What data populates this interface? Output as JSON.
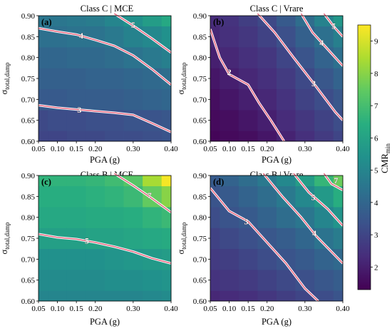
{
  "chart_data": [
    {
      "type": "heatmap",
      "panel_label": "(a)",
      "title": "Class C | MCE",
      "xlabel": "PGA (g)",
      "ylabel": "σ_total,damp",
      "x": [
        0.05,
        0.1,
        0.15,
        0.2,
        0.25,
        0.3,
        0.35,
        0.4
      ],
      "y": [
        0.6,
        0.65,
        0.7,
        0.75,
        0.8,
        0.85,
        0.9
      ],
      "values": [
        [
          3.0,
          3.0,
          3.1,
          3.1,
          3.2,
          3.2,
          3.3,
          3.4
        ],
        [
          3.1,
          3.2,
          3.2,
          3.3,
          3.3,
          3.4,
          3.4,
          3.5
        ],
        [
          3.6,
          3.6,
          3.7,
          3.7,
          3.7,
          3.8,
          3.9,
          4.0
        ],
        [
          3.8,
          3.8,
          3.8,
          3.9,
          3.9,
          4.0,
          4.1,
          4.2
        ],
        [
          4.0,
          4.0,
          4.1,
          4.1,
          4.2,
          4.4,
          4.6,
          4.8
        ],
        [
          4.3,
          4.3,
          4.4,
          4.4,
          4.6,
          4.9,
          5.1,
          5.4
        ],
        [
          4.5,
          4.5,
          4.6,
          4.7,
          5.0,
          5.4,
          5.8,
          6.2
        ]
      ],
      "contours": [
        {
          "level": "3",
          "points": [
            [
              0.05,
              0.686
            ],
            [
              0.1,
              0.68
            ],
            [
              0.15,
              0.676
            ],
            [
              0.2,
              0.672
            ],
            [
              0.25,
              0.668
            ],
            [
              0.3,
              0.663
            ],
            [
              0.35,
              0.643
            ],
            [
              0.4,
              0.622
            ]
          ]
        },
        {
          "level": "4",
          "points": [
            [
              0.05,
              0.87
            ],
            [
              0.1,
              0.862
            ],
            [
              0.15,
              0.855
            ],
            [
              0.2,
              0.842
            ],
            [
              0.25,
              0.828
            ],
            [
              0.3,
              0.805
            ],
            [
              0.35,
              0.772
            ],
            [
              0.4,
              0.735
            ]
          ]
        },
        {
          "level": "5",
          "points": [
            [
              0.25,
              0.905
            ],
            [
              0.3,
              0.876
            ],
            [
              0.35,
              0.845
            ],
            [
              0.4,
              0.812
            ]
          ]
        }
      ],
      "contour_labels": [
        {
          "text": "3",
          "at": [
            0.158,
            0.675
          ]
        },
        {
          "text": "4",
          "at": [
            0.163,
            0.852
          ]
        },
        {
          "text": "5",
          "at": [
            0.3,
            0.878
          ]
        }
      ],
      "xlim": [
        0.05,
        0.4
      ],
      "ylim": [
        0.6,
        0.9
      ]
    },
    {
      "type": "heatmap",
      "panel_label": "(b)",
      "title": "Class C | Vrare",
      "xlabel": "PGA (g)",
      "ylabel": "σ_total,damp",
      "x": [
        0.05,
        0.1,
        0.15,
        0.2,
        0.25,
        0.3,
        0.35,
        0.4
      ],
      "y": [
        0.6,
        0.65,
        0.7,
        0.75,
        0.8,
        0.85,
        0.9
      ],
      "values": [
        [
          1.4,
          1.5,
          1.6,
          1.8,
          2.1,
          2.4,
          2.7,
          3.0
        ],
        [
          1.5,
          1.6,
          1.8,
          2.0,
          2.3,
          2.6,
          2.9,
          3.2
        ],
        [
          1.6,
          1.8,
          2.0,
          2.2,
          2.5,
          2.9,
          3.2,
          3.5
        ],
        [
          1.8,
          2.0,
          2.2,
          2.4,
          2.7,
          3.1,
          3.5,
          3.9
        ],
        [
          2.0,
          2.2,
          2.4,
          2.6,
          3.0,
          3.4,
          3.9,
          4.3
        ],
        [
          2.2,
          2.4,
          2.6,
          2.9,
          3.3,
          3.8,
          4.3,
          4.8
        ],
        [
          2.3,
          2.5,
          2.8,
          3.1,
          3.6,
          4.2,
          4.9,
          5.6
        ]
      ],
      "contours": [
        {
          "level": "2",
          "points": [
            [
              0.05,
              0.868
            ],
            [
              0.075,
              0.8
            ],
            [
              0.1,
              0.76
            ],
            [
              0.15,
              0.735
            ],
            [
              0.18,
              0.69
            ],
            [
              0.21,
              0.65
            ],
            [
              0.245,
              0.6
            ]
          ]
        },
        {
          "level": "3",
          "points": [
            [
              0.175,
              0.905
            ],
            [
              0.22,
              0.86
            ],
            [
              0.27,
              0.8
            ],
            [
              0.33,
              0.73
            ],
            [
              0.38,
              0.67
            ],
            [
              0.4,
              0.65
            ]
          ]
        },
        {
          "level": "4",
          "points": [
            [
              0.29,
              0.905
            ],
            [
              0.32,
              0.86
            ],
            [
              0.36,
              0.82
            ],
            [
              0.4,
              0.78
            ]
          ]
        },
        {
          "level": "5",
          "points": [
            [
              0.35,
              0.905
            ],
            [
              0.38,
              0.87
            ],
            [
              0.4,
              0.85
            ]
          ]
        }
      ],
      "contour_labels": [
        {
          "text": "2",
          "at": [
            0.1,
            0.765
          ]
        },
        {
          "text": "3",
          "at": [
            0.323,
            0.738
          ]
        },
        {
          "text": "4",
          "at": [
            0.344,
            0.835
          ]
        },
        {
          "text": "5",
          "at": [
            0.376,
            0.875
          ]
        }
      ],
      "xlim": [
        0.05,
        0.4
      ],
      "ylim": [
        0.6,
        0.9
      ]
    },
    {
      "type": "heatmap",
      "panel_label": "(c)",
      "title": "Class B | MCE",
      "xlabel": "PGA (g)",
      "ylabel": "σ_total,damp",
      "x": [
        0.05,
        0.1,
        0.15,
        0.2,
        0.25,
        0.3,
        0.35,
        0.4
      ],
      "y": [
        0.6,
        0.65,
        0.7,
        0.75,
        0.8,
        0.85,
        0.9
      ],
      "values": [
        [
          5.0,
          5.0,
          5.0,
          5.0,
          5.0,
          5.0,
          5.1,
          5.2
        ],
        [
          5.2,
          5.2,
          5.2,
          5.2,
          5.3,
          5.3,
          5.4,
          5.5
        ],
        [
          5.4,
          5.4,
          5.4,
          5.4,
          5.5,
          5.6,
          5.7,
          5.8
        ],
        [
          5.9,
          5.9,
          5.9,
          6.0,
          6.0,
          6.1,
          6.2,
          6.3
        ],
        [
          6.2,
          6.2,
          6.2,
          6.3,
          6.3,
          6.4,
          6.6,
          6.8
        ],
        [
          6.4,
          6.4,
          6.4,
          6.5,
          6.6,
          6.8,
          7.5,
          8.0
        ],
        [
          6.6,
          6.6,
          6.6,
          6.7,
          6.9,
          7.3,
          8.4,
          9.4
        ]
      ],
      "contours": [
        {
          "level": "5",
          "points": [
            [
              0.05,
              0.76
            ],
            [
              0.1,
              0.752
            ],
            [
              0.15,
              0.748
            ],
            [
              0.2,
              0.74
            ],
            [
              0.25,
              0.73
            ],
            [
              0.3,
              0.718
            ],
            [
              0.35,
              0.702
            ],
            [
              0.4,
              0.69
            ]
          ]
        },
        {
          "level": "7",
          "points": [
            [
              0.25,
              0.905
            ],
            [
              0.3,
              0.876
            ],
            [
              0.35,
              0.845
            ],
            [
              0.4,
              0.812
            ]
          ]
        }
      ],
      "contour_labels": [
        {
          "text": "5",
          "at": [
            0.178,
            0.744
          ]
        },
        {
          "text": "7",
          "at": [
            0.343,
            0.852
          ]
        }
      ],
      "xlim": [
        0.05,
        0.4
      ],
      "ylim": [
        0.6,
        0.9
      ]
    },
    {
      "type": "heatmap",
      "panel_label": "(d)",
      "title": "Class B | Vrare",
      "xlabel": "PGA (g)",
      "ylabel": "σ_total,damp",
      "x": [
        0.05,
        0.1,
        0.15,
        0.2,
        0.25,
        0.3,
        0.35,
        0.4
      ],
      "y": [
        0.6,
        0.65,
        0.7,
        0.75,
        0.8,
        0.85,
        0.9
      ],
      "values": [
        [
          2.2,
          2.3,
          2.4,
          2.6,
          2.8,
          3.0,
          3.2,
          3.4
        ],
        [
          2.5,
          2.6,
          2.7,
          2.9,
          3.1,
          3.3,
          3.5,
          3.7
        ],
        [
          2.7,
          2.8,
          3.0,
          3.2,
          3.4,
          3.6,
          3.9,
          4.1
        ],
        [
          2.9,
          3.1,
          3.3,
          3.5,
          3.7,
          4.0,
          4.4,
          4.7
        ],
        [
          3.2,
          3.4,
          3.6,
          3.9,
          4.2,
          4.5,
          5.0,
          5.5
        ],
        [
          3.4,
          3.6,
          3.9,
          4.2,
          4.6,
          5.1,
          5.7,
          6.4
        ],
        [
          3.6,
          3.9,
          4.2,
          4.6,
          5.1,
          5.8,
          6.7,
          7.6
        ]
      ],
      "contours": [
        {
          "level": "3",
          "points": [
            [
              0.05,
              0.87
            ],
            [
              0.1,
              0.815
            ],
            [
              0.15,
              0.79
            ],
            [
              0.2,
              0.74
            ],
            [
              0.25,
              0.69
            ],
            [
              0.3,
              0.63
            ],
            [
              0.335,
              0.6
            ]
          ]
        },
        {
          "level": "4",
          "points": [
            [
              0.19,
              0.905
            ],
            [
              0.24,
              0.85
            ],
            [
              0.29,
              0.8
            ],
            [
              0.33,
              0.755
            ],
            [
              0.4,
              0.69
            ]
          ]
        },
        {
          "level": "5",
          "points": [
            [
              0.27,
              0.905
            ],
            [
              0.31,
              0.86
            ],
            [
              0.36,
              0.82
            ],
            [
              0.4,
              0.78
            ]
          ]
        },
        {
          "level": "7",
          "points": [
            [
              0.35,
              0.905
            ],
            [
              0.37,
              0.88
            ],
            [
              0.4,
              0.865
            ]
          ]
        }
      ],
      "contour_labels": [
        {
          "text": "3",
          "at": [
            0.145,
            0.79
          ]
        },
        {
          "text": "4",
          "at": [
            0.325,
            0.762
          ]
        },
        {
          "text": "5",
          "at": [
            0.322,
            0.848
          ]
        },
        {
          "text": "7",
          "at": [
            0.382,
            0.888
          ]
        }
      ],
      "xlim": [
        0.05,
        0.4
      ],
      "ylim": [
        0.6,
        0.9
      ]
    }
  ],
  "x_tick_labels": [
    "0.05",
    "0.10",
    "0.15",
    "0.20",
    "0.30",
    "0.40"
  ],
  "y_tick_labels": [
    "0.60",
    "0.65",
    "0.70",
    "0.75",
    "0.80",
    "0.85",
    "0.90"
  ],
  "colorbar": {
    "label": "CMR",
    "label_subscript": "min",
    "ticks": [
      "2",
      "3",
      "4",
      "5",
      "6",
      "7",
      "8",
      "9"
    ],
    "range": [
      1.3,
      9.5
    ],
    "colormap": "viridis"
  },
  "contour_color": "#e8607a"
}
